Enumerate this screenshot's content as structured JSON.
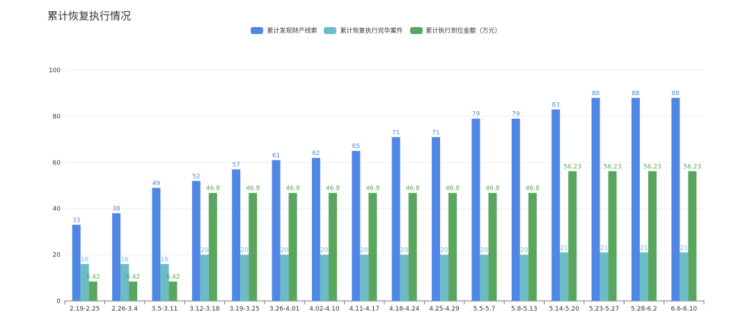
{
  "chart_data": {
    "type": "bar",
    "title": "累计恢复执行情况",
    "categories": [
      "2.19-2.25",
      "2.26-3.4",
      "3.5-3.11",
      "3.12-3.18",
      "3.19-3.25",
      "3.26-4.01",
      "4.02-4.10",
      "4.11-4.17",
      "4.18-4.24",
      "4.25-4.29",
      "5.5-5.7",
      "5.8-5.13",
      "5.14-5.20",
      "5.23-5.27",
      "5.28-6.2",
      "6.6-6.10"
    ],
    "series": [
      {
        "name": "累计发现财产线索",
        "color": "#5087E5",
        "values": [
          33,
          38,
          49,
          52,
          57,
          61,
          62,
          65,
          71,
          71,
          79,
          79,
          83,
          88,
          88,
          88
        ],
        "labels": [
          "33",
          "38",
          "49",
          "52",
          "57",
          "61",
          "62",
          "65",
          "71",
          "71",
          "79",
          "79",
          "83",
          "88",
          "88",
          "88"
        ]
      },
      {
        "name": "累计恢复执行完毕案件",
        "color": "#6BBCC6",
        "values": [
          16,
          16,
          16,
          20,
          20,
          20,
          20,
          20,
          20,
          20,
          20,
          20,
          21,
          21,
          21,
          21
        ],
        "labels": [
          "16",
          "16",
          "16",
          "20",
          "20",
          "20",
          "20",
          "20",
          "20",
          "20",
          "20",
          "20",
          "21",
          "21",
          "21",
          "21"
        ]
      },
      {
        "name": "累计执行到位金额（万元）",
        "color": "#5AA65E",
        "values": [
          8.42,
          8.42,
          8.42,
          46.8,
          46.8,
          46.8,
          46.8,
          46.8,
          46.8,
          46.8,
          46.8,
          46.8,
          56.23,
          56.23,
          56.23,
          56.23
        ],
        "labels": [
          "8.42",
          "8.42",
          "8.42",
          "46.8",
          "46.8",
          "46.8",
          "46.8",
          "46.8",
          "46.8",
          "46.8",
          "46.8",
          "46.8",
          "56.23",
          "56.23",
          "56.23",
          "56.23"
        ]
      }
    ],
    "yticks": [
      "0",
      "20",
      "40",
      "60",
      "80",
      "100"
    ],
    "ylim": [
      0,
      100
    ],
    "grid": true,
    "legend_position": "top-center"
  }
}
